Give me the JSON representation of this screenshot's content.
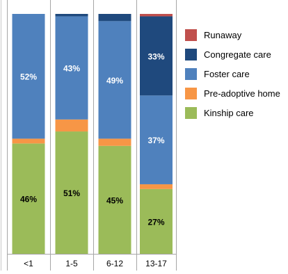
{
  "chart_data": {
    "type": "bar",
    "stacked": true,
    "normalized": true,
    "categories": [
      "<1",
      "1-5",
      "6-12",
      "13-17"
    ],
    "series": [
      {
        "name": "Kinship care",
        "color": "#9BBB59",
        "values": [
          46,
          51,
          45,
          27
        ],
        "labels": [
          "46%",
          "51%",
          "45%",
          "27%"
        ]
      },
      {
        "name": "Pre-adoptive home",
        "color": "#F79646",
        "values": [
          2,
          5,
          3,
          2
        ],
        "labels": [
          "",
          "",
          "",
          ""
        ]
      },
      {
        "name": "Foster care",
        "color": "#4F81BD",
        "values": [
          52,
          43,
          49,
          37
        ],
        "labels": [
          "52%",
          "43%",
          "49%",
          "37%"
        ]
      },
      {
        "name": "Congregate care",
        "color": "#1F497D",
        "values": [
          0,
          1,
          3,
          33
        ],
        "labels": [
          "",
          "",
          "",
          "33%"
        ]
      },
      {
        "name": "Runaway",
        "color": "#C0504D",
        "values": [
          0,
          0,
          0,
          1
        ],
        "labels": [
          "",
          "",
          "",
          ""
        ]
      }
    ],
    "legend_order": [
      "Runaway",
      "Congregate care",
      "Foster care",
      "Pre-adoptive home",
      "Kinship care"
    ],
    "legend_position": "right",
    "ylim": [
      0,
      100
    ],
    "grid": false
  }
}
